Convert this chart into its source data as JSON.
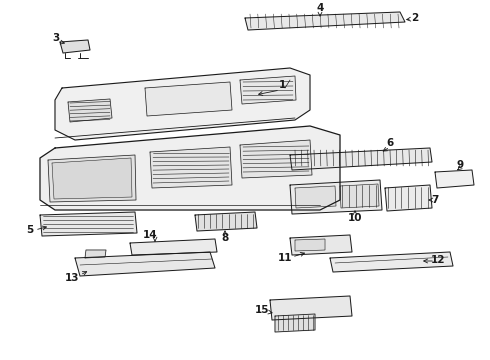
{
  "background": "#ffffff",
  "line_color": "#1a1a1a",
  "lw": 0.7,
  "fig_w": 4.9,
  "fig_h": 3.6,
  "dpi": 100
}
